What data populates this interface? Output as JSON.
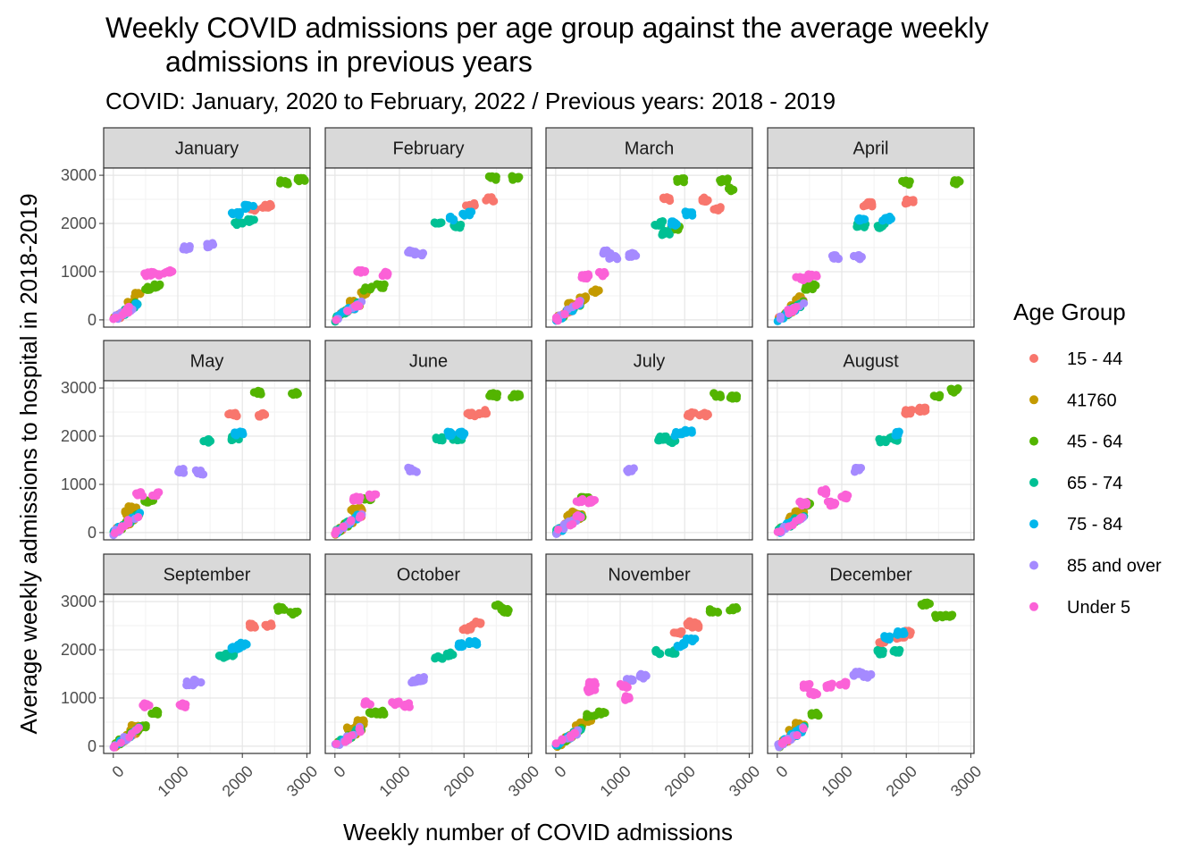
{
  "chart_data": {
    "type": "scatter",
    "title_line1": "Weekly COVID admissions per age group against the average weekly",
    "title_line2": "admissions in previous years",
    "subtitle": "COVID: January, 2020 to February, 2022 / Previous years: 2018 - 2019",
    "xlabel": "Weekly number of COVID admissions",
    "ylabel": "Average weekly admissions to hospital in 2018-2019",
    "xlim": [
      -150,
      3050
    ],
    "ylim": [
      -150,
      3150
    ],
    "x_ticks": [
      "0",
      "1000",
      "2000",
      "3000"
    ],
    "y_ticks": [
      "0",
      "1000",
      "2000",
      "3000"
    ],
    "grid": true,
    "legend_title": "Age Group",
    "legend_position": "right",
    "series": [
      {
        "name": "15 - 44",
        "color": "#F8766D"
      },
      {
        "name": "41760",
        "color": "#C49A00"
      },
      {
        "name": "45 - 64",
        "color": "#53B400"
      },
      {
        "name": "65 - 74",
        "color": "#00C094"
      },
      {
        "name": "75 - 84",
        "color": "#00B6EB"
      },
      {
        "name": "85 and over",
        "color": "#A58AFF"
      },
      {
        "name": "Under 5",
        "color": "#FB61D7"
      }
    ],
    "panels": [
      {
        "month": "January",
        "clusters": {
          "15 - 44": [
            [
              2150,
              2300
            ],
            [
              2380,
              2360
            ]
          ],
          "41760": [
            [
              280,
              350
            ],
            [
              400,
              520
            ]
          ],
          "45 - 64": [
            [
              2650,
              2850
            ],
            [
              2900,
              2900
            ],
            [
              550,
              650
            ],
            [
              680,
              700
            ]
          ],
          "65 - 74": [
            [
              1950,
              2000
            ],
            [
              2130,
              2050
            ]
          ],
          "75 - 84": [
            [
              1900,
              2200
            ],
            [
              2100,
              2350
            ]
          ],
          "85 and over": [
            [
              1150,
              1500
            ],
            [
              1500,
              1550
            ]
          ],
          "Under 5": [
            [
              550,
              950
            ],
            [
              850,
              1000
            ],
            [
              650,
              950
            ]
          ]
        }
      },
      {
        "month": "February",
        "clusters": {
          "15 - 44": [
            [
              2100,
              2400
            ],
            [
              2400,
              2500
            ]
          ],
          "41760": [
            [
              300,
              400
            ],
            [
              450,
              550
            ]
          ],
          "45 - 64": [
            [
              2450,
              2950
            ],
            [
              2800,
              2950
            ],
            [
              500,
              650
            ],
            [
              700,
              700
            ]
          ],
          "65 - 74": [
            [
              1600,
              2000
            ],
            [
              1900,
              1950
            ]
          ],
          "75 - 84": [
            [
              1800,
              2100
            ],
            [
              2050,
              2200
            ]
          ],
          "85 and over": [
            [
              1150,
              1400
            ],
            [
              1300,
              1380
            ]
          ],
          "Under 5": [
            [
              400,
              1000
            ],
            [
              750,
              950
            ]
          ]
        }
      },
      {
        "month": "March",
        "clusters": {
          "15 - 44": [
            [
              1700,
              2500
            ],
            [
              2300,
              2500
            ],
            [
              2500,
              2300
            ]
          ],
          "41760": [
            [
              250,
              350
            ],
            [
              400,
              450
            ],
            [
              600,
              600
            ]
          ],
          "45 - 64": [
            [
              2600,
              2900
            ],
            [
              2750,
              2700
            ],
            [
              1950,
              2900
            ],
            [
              1850,
              1900
            ]
          ],
          "65 - 74": [
            [
              1600,
              2000
            ],
            [
              1700,
              1800
            ]
          ],
          "75 - 84": [
            [
              1850,
              2000
            ],
            [
              2050,
              2200
            ]
          ],
          "85 and over": [
            [
              1200,
              1350
            ],
            [
              900,
              1300
            ],
            [
              800,
              1400
            ]
          ],
          "Under 5": [
            [
              450,
              900
            ],
            [
              700,
              950
            ]
          ]
        }
      },
      {
        "month": "April",
        "clusters": {
          "15 - 44": [
            [
              1400,
              2400
            ],
            [
              2050,
              2450
            ]
          ],
          "41760": [
            [
              250,
              300
            ],
            [
              350,
              450
            ]
          ],
          "45 - 64": [
            [
              2000,
              2850
            ],
            [
              2800,
              2850
            ],
            [
              500,
              650
            ],
            [
              550,
              700
            ]
          ],
          "65 - 74": [
            [
              1300,
              1950
            ],
            [
              1600,
              1950
            ]
          ],
          "75 - 84": [
            [
              1300,
              2100
            ],
            [
              1700,
              2100
            ]
          ],
          "85 and over": [
            [
              900,
              1300
            ],
            [
              1250,
              1300
            ]
          ],
          "Under 5": [
            [
              350,
              850
            ],
            [
              550,
              900
            ]
          ]
        }
      },
      {
        "month": "May",
        "clusters": {
          "15 - 44": [
            [
              1850,
              2450
            ],
            [
              2300,
              2450
            ]
          ],
          "41760": [
            [
              250,
              400
            ],
            [
              300,
              500
            ]
          ],
          "45 - 64": [
            [
              2250,
              2900
            ],
            [
              2800,
              2900
            ],
            [
              550,
              650
            ]
          ],
          "65 - 74": [
            [
              1450,
              1900
            ],
            [
              1900,
              1950
            ]
          ],
          "75 - 84": [
            [
              1950,
              2050
            ]
          ],
          "85 and over": [
            [
              1050,
              1280
            ],
            [
              1350,
              1250
            ]
          ],
          "Under 5": [
            [
              400,
              800
            ],
            [
              650,
              800
            ]
          ]
        }
      },
      {
        "month": "June",
        "clusters": {
          "15 - 44": [
            [
              2100,
              2450
            ],
            [
              2300,
              2500
            ]
          ],
          "41760": [
            [
              300,
              450
            ],
            [
              350,
              500
            ]
          ],
          "45 - 64": [
            [
              2450,
              2850
            ],
            [
              2800,
              2850
            ],
            [
              500,
              700
            ]
          ],
          "65 - 74": [
            [
              1600,
              1950
            ],
            [
              1900,
              1950
            ]
          ],
          "75 - 84": [
            [
              1800,
              2050
            ],
            [
              2000,
              2050
            ]
          ],
          "85 and over": [
            [
              1200,
              1300
            ]
          ],
          "Under 5": [
            [
              350,
              700
            ],
            [
              600,
              750
            ]
          ]
        }
      },
      {
        "month": "July",
        "clusters": {
          "15 - 44": [
            [
              2100,
              2450
            ],
            [
              2300,
              2450
            ]
          ],
          "41760": [
            [
              250,
              350
            ],
            [
              300,
              400
            ]
          ],
          "45 - 64": [
            [
              2500,
              2850
            ],
            [
              2750,
              2800
            ],
            [
              450,
              700
            ]
          ],
          "65 - 74": [
            [
              1650,
              1950
            ],
            [
              1800,
              1900
            ]
          ],
          "75 - 84": [
            [
              1900,
              2050
            ],
            [
              2050,
              2100
            ]
          ],
          "85 and over": [
            [
              1150,
              1300
            ]
          ],
          "Under 5": [
            [
              350,
              650
            ],
            [
              550,
              650
            ]
          ]
        }
      },
      {
        "month": "August",
        "clusters": {
          "15 - 44": [
            [
              2050,
              2500
            ],
            [
              2250,
              2550
            ]
          ],
          "41760": [
            [
              250,
              300
            ],
            [
              350,
              400
            ]
          ],
          "45 - 64": [
            [
              2450,
              2850
            ],
            [
              2750,
              2950
            ],
            [
              450,
              600
            ]
          ],
          "65 - 74": [
            [
              1650,
              1900
            ],
            [
              1800,
              1950
            ]
          ],
          "75 - 84": [
            [
              1900,
              2050
            ]
          ],
          "85 and over": [
            [
              1250,
              1300
            ]
          ],
          "Under 5": [
            [
              400,
              600
            ],
            [
              700,
              850
            ],
            [
              1050,
              750
            ],
            [
              850,
              600
            ]
          ]
        }
      },
      {
        "month": "September",
        "clusters": {
          "15 - 44": [
            [
              2150,
              2500
            ],
            [
              2400,
              2500
            ]
          ],
          "41760": [
            [
              300,
              300
            ],
            [
              350,
              400
            ]
          ],
          "45 - 64": [
            [
              2600,
              2850
            ],
            [
              2800,
              2750
            ],
            [
              450,
              400
            ],
            [
              650,
              700
            ]
          ],
          "65 - 74": [
            [
              1700,
              1850
            ],
            [
              1800,
              1900
            ]
          ],
          "75 - 84": [
            [
              1900,
              2050
            ],
            [
              2000,
              2100
            ]
          ],
          "85 and over": [
            [
              1200,
              1300
            ],
            [
              1300,
              1350
            ]
          ],
          "Under 5": [
            [
              500,
              850
            ],
            [
              1100,
              850
            ]
          ]
        }
      },
      {
        "month": "October",
        "clusters": {
          "15 - 44": [
            [
              2050,
              2450
            ],
            [
              2200,
              2550
            ]
          ],
          "41760": [
            [
              250,
              350
            ],
            [
              400,
              500
            ]
          ],
          "45 - 64": [
            [
              2550,
              2900
            ],
            [
              2650,
              2800
            ],
            [
              600,
              700
            ],
            [
              700,
              700
            ]
          ],
          "65 - 74": [
            [
              1600,
              1850
            ],
            [
              1800,
              1900
            ]
          ],
          "75 - 84": [
            [
              1950,
              2100
            ],
            [
              2150,
              2150
            ]
          ],
          "85 and over": [
            [
              1250,
              1350
            ],
            [
              1350,
              1400
            ]
          ],
          "Under 5": [
            [
              500,
              900
            ],
            [
              950,
              900
            ],
            [
              1100,
              850
            ]
          ]
        }
      },
      {
        "month": "November",
        "clusters": {
          "15 - 44": [
            [
              1900,
              2350
            ],
            [
              2100,
              2550
            ],
            [
              2150,
              2500
            ]
          ],
          "41760": [
            [
              350,
              450
            ],
            [
              500,
              550
            ]
          ],
          "45 - 64": [
            [
              2450,
              2800
            ],
            [
              2750,
              2850
            ],
            [
              550,
              650
            ],
            [
              700,
              700
            ]
          ],
          "65 - 74": [
            [
              1600,
              1950
            ],
            [
              1800,
              1950
            ]
          ],
          "75 - 84": [
            [
              1950,
              2100
            ],
            [
              2100,
              2200
            ]
          ],
          "85 and over": [
            [
              1150,
              1400
            ],
            [
              1350,
              1450
            ]
          ],
          "Under 5": [
            [
              550,
              1300
            ],
            [
              550,
              1150
            ],
            [
              1050,
              1250
            ],
            [
              1100,
              1000
            ]
          ]
        }
      },
      {
        "month": "December",
        "clusters": {
          "15 - 44": [
            [
              1600,
              2150
            ],
            [
              2050,
              2350
            ],
            [
              1900,
              2250
            ]
          ],
          "41760": [
            [
              250,
              300
            ],
            [
              350,
              450
            ]
          ],
          "45 - 64": [
            [
              2300,
              2950
            ],
            [
              2500,
              2700
            ],
            [
              2650,
              2700
            ],
            [
              600,
              650
            ]
          ],
          "65 - 74": [
            [
              1600,
              1950
            ],
            [
              1850,
              1950
            ]
          ],
          "75 - 84": [
            [
              1700,
              2250
            ],
            [
              1900,
              2350
            ]
          ],
          "85 and over": [
            [
              1250,
              1500
            ],
            [
              1400,
              1450
            ]
          ],
          "Under 5": [
            [
              450,
              1250
            ],
            [
              550,
              1100
            ],
            [
              800,
              1250
            ],
            [
              1000,
              1300
            ]
          ]
        }
      }
    ]
  }
}
